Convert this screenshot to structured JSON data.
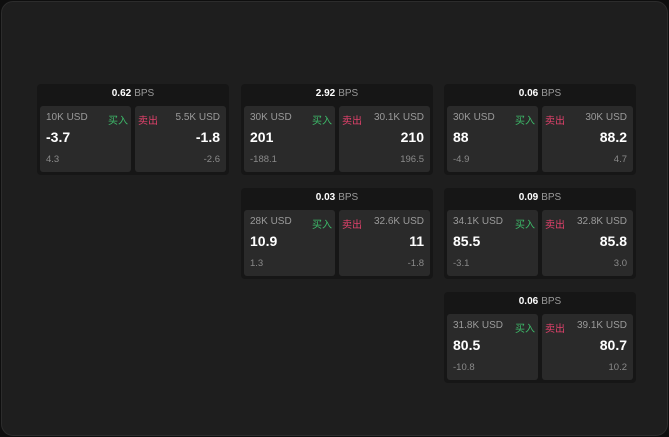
{
  "colors": {
    "buy": "#3dbb6a",
    "sell": "#e0416b"
  },
  "labels": {
    "buy": "买入",
    "sell": "卖出",
    "unit": "BPS"
  },
  "cards": [
    {
      "spread": "0.62",
      "bid": {
        "amount": "10K USD",
        "price": "-3.7",
        "change": "4.3"
      },
      "ask": {
        "amount": "5.5K USD",
        "price": "-1.8",
        "change": "-2.6"
      }
    },
    {
      "spread": "2.92",
      "bid": {
        "amount": "30K USD",
        "price": "201",
        "change": "-188.1"
      },
      "ask": {
        "amount": "30.1K USD",
        "price": "210",
        "change": "196.5"
      }
    },
    {
      "spread": "0.06",
      "bid": {
        "amount": "30K USD",
        "price": "88",
        "change": "-4.9"
      },
      "ask": {
        "amount": "30K USD",
        "price": "88.2",
        "change": "4.7"
      }
    },
    {
      "spread": "0.03",
      "bid": {
        "amount": "28K USD",
        "price": "10.9",
        "change": "1.3"
      },
      "ask": {
        "amount": "32.6K USD",
        "price": "11",
        "change": "-1.8"
      }
    },
    {
      "spread": "0.09",
      "bid": {
        "amount": "34.1K USD",
        "price": "85.5",
        "change": "-3.1"
      },
      "ask": {
        "amount": "32.8K USD",
        "price": "85.8",
        "change": "3.0"
      }
    },
    {
      "spread": "0.06",
      "bid": {
        "amount": "31.8K USD",
        "price": "80.5",
        "change": "-10.8"
      },
      "ask": {
        "amount": "39.1K USD",
        "price": "80.7",
        "change": "10.2"
      }
    }
  ]
}
